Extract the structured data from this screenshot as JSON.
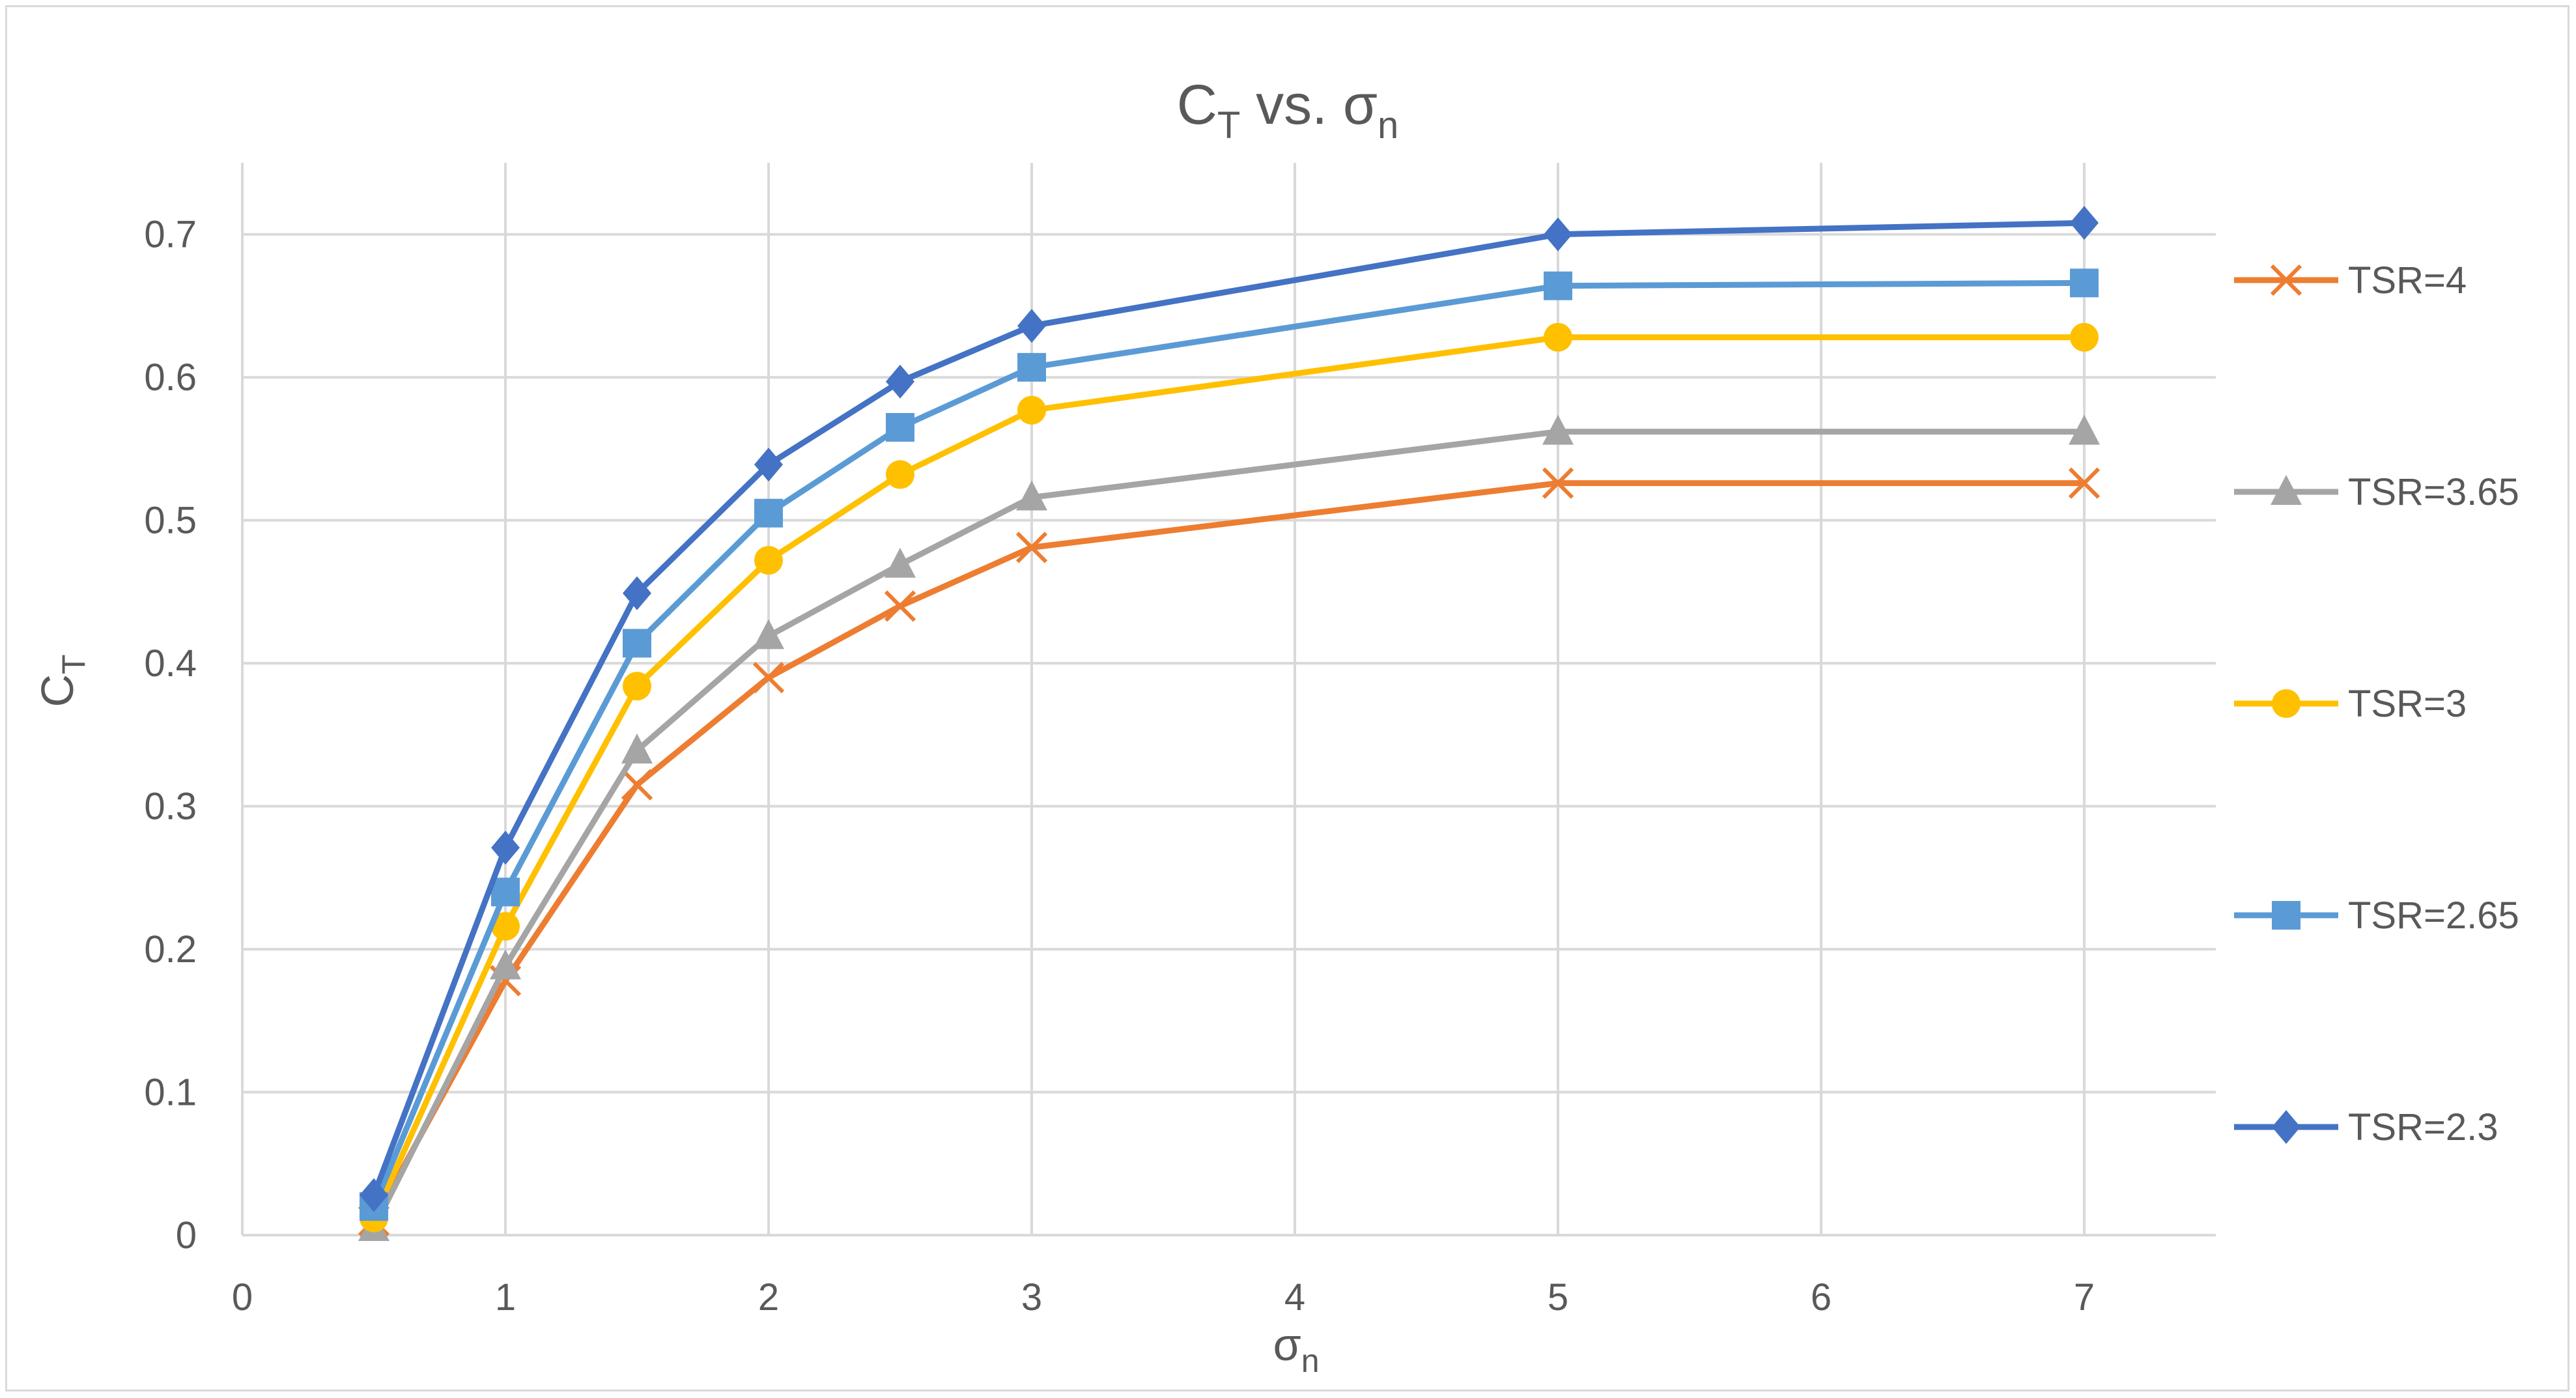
{
  "chart_data": {
    "type": "line",
    "title": {
      "main": "C",
      "sub": "T",
      "mid": " vs. σ",
      "sub2": "n"
    },
    "xlabel": {
      "main": "σ",
      "sub": "n"
    },
    "ylabel": {
      "main": "C",
      "sub": "T"
    },
    "xlim": [
      0,
      7.5
    ],
    "ylim": [
      0,
      0.75
    ],
    "x_ticks": [
      "0",
      "1",
      "2",
      "3",
      "4",
      "5",
      "6",
      "7"
    ],
    "y_ticks": [
      "0",
      "0.1",
      "0.2",
      "0.3",
      "0.4",
      "0.5",
      "0.6",
      "0.7"
    ],
    "grid": true,
    "legend_position": "right",
    "x": [
      0.5,
      1,
      1.5,
      2,
      2.5,
      3,
      5,
      7
    ],
    "series": [
      {
        "name": "TSR=4",
        "color": "#ed7d31",
        "marker": "x",
        "values": [
          0.01,
          0.178,
          0.315,
          0.39,
          0.44,
          0.481,
          0.526,
          0.526
        ]
      },
      {
        "name": "TSR=3.65",
        "color": "#a5a5a5",
        "marker": "triangle",
        "values": [
          0.005,
          0.188,
          0.339,
          0.419,
          0.469,
          0.516,
          0.562,
          0.562
        ]
      },
      {
        "name": "TSR=3",
        "color": "#ffc000",
        "marker": "circle",
        "values": [
          0.012,
          0.216,
          0.384,
          0.472,
          0.532,
          0.577,
          0.628,
          0.628
        ]
      },
      {
        "name": "TSR=2.65",
        "color": "#5b9bd5",
        "marker": "square",
        "values": [
          0.02,
          0.24,
          0.414,
          0.505,
          0.565,
          0.607,
          0.664,
          0.666
        ]
      },
      {
        "name": "TSR=2.3",
        "color": "#4472c4",
        "marker": "diamond",
        "values": [
          0.028,
          0.271,
          0.449,
          0.539,
          0.597,
          0.636,
          0.7,
          0.708
        ]
      }
    ]
  }
}
